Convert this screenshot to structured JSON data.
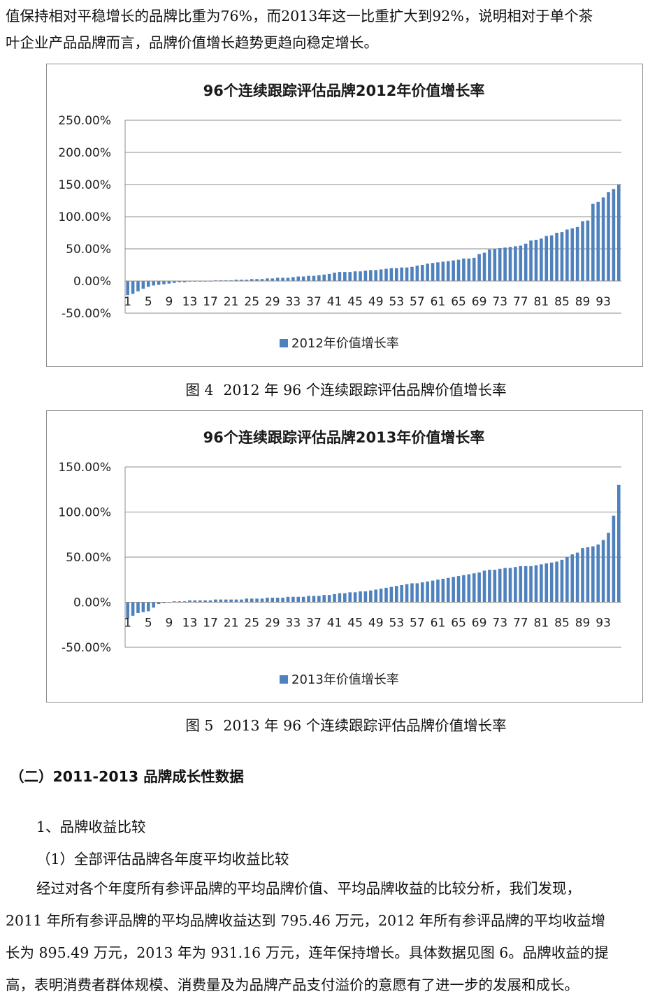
{
  "intro": {
    "line1": "值保持相对平稳增长的品牌比重为76%，而2013年这一比重扩大到92%，说明相对于单个茶",
    "line2": "叶企业产品品牌而言，品牌价值增长趋势更趋向稳定增长。"
  },
  "figure4": {
    "number": "图 4",
    "text": "2012 年 96 个连续跟踪评估品牌价值增长率"
  },
  "figure5": {
    "number": "图 5",
    "text": "2013 年 96 个连续跟踪评估品牌价值增长率"
  },
  "section": {
    "heading": "（二）2011-2013 品牌成长性数据",
    "sub1": "1、品牌收益比较",
    "sub2": "（1）全部评估品牌各年度平均收益比较",
    "body": [
      "经过对各个年度所有参评品牌的平均品牌价值、平均品牌收益的比较分析，我们发现，",
      "2011 年所有参评品牌的平均品牌收益达到 795.46 万元，2012 年所有参评品牌的平均收益增",
      "长为 895.49 万元，2013 年为 931.16 万元，连年保持增长。具体数据见图 6。品牌收益的提",
      "高，表明消费者群体规模、消费量及为品牌产品支付溢价的意愿有了进一步的发展和成长。"
    ]
  },
  "colors": {
    "bar": "#4f81bd",
    "grid": "#8c8c8c"
  },
  "chart_data": [
    {
      "type": "bar",
      "title": "96个连续跟踪评估品牌2012年价值增长率",
      "legend": "2012年价值增长率",
      "legend_position": "bottom",
      "ylim": [
        -50,
        250
      ],
      "yticks": [
        -50,
        0,
        50,
        100,
        150,
        200,
        250
      ],
      "ytick_labels": [
        "-50.00%",
        "0.00%",
        "50.00%",
        "100.00%",
        "150.00%",
        "200.00%",
        "250.00%"
      ],
      "xtick_labels": [
        "1",
        "5",
        "9",
        "13",
        "17",
        "21",
        "25",
        "29",
        "33",
        "37",
        "41",
        "45",
        "49",
        "53",
        "57",
        "61",
        "65",
        "69",
        "73",
        "77",
        "81",
        "85",
        "89",
        "93"
      ],
      "grid": true,
      "values": [
        -22,
        -20,
        -16,
        -12,
        -9,
        -7,
        -6,
        -5,
        -4,
        -3,
        -2,
        -2,
        -1,
        -1,
        -1,
        0,
        0,
        1,
        1,
        1,
        1,
        2,
        2,
        2,
        3,
        3,
        3,
        4,
        4,
        5,
        5,
        5,
        6,
        7,
        7,
        8,
        8,
        9,
        10,
        11,
        13,
        14,
        14,
        14,
        15,
        15,
        16,
        17,
        17,
        18,
        19,
        20,
        20,
        21,
        21,
        22,
        24,
        25,
        27,
        28,
        29,
        30,
        31,
        32,
        33,
        35,
        35,
        36,
        42,
        44,
        49,
        50,
        51,
        52,
        53,
        54,
        55,
        58,
        63,
        64,
        66,
        70,
        71,
        75,
        76,
        80,
        82,
        84,
        93,
        94,
        120,
        123,
        130,
        138,
        143,
        150
      ]
    },
    {
      "type": "bar",
      "title": "96个连续跟踪评估品牌2013年价值增长率",
      "legend": "2013年价值增长率",
      "legend_position": "bottom",
      "ylim": [
        -50,
        150
      ],
      "yticks": [
        -50,
        0,
        50,
        100,
        150
      ],
      "ytick_labels": [
        "-50.00%",
        "0.00%",
        "50.00%",
        "100.00%",
        "150.00%"
      ],
      "xtick_labels": [
        "1",
        "5",
        "9",
        "13",
        "17",
        "21",
        "25",
        "29",
        "33",
        "37",
        "41",
        "45",
        "49",
        "53",
        "57",
        "61",
        "65",
        "69",
        "73",
        "77",
        "81",
        "85",
        "89",
        "93"
      ],
      "grid": true,
      "values": [
        -18,
        -15,
        -12,
        -11,
        -10,
        -6,
        -2,
        -1,
        0,
        1,
        1,
        1,
        2,
        2,
        2,
        2,
        2,
        3,
        3,
        3,
        3,
        3,
        3,
        4,
        4,
        4,
        4,
        5,
        5,
        5,
        5,
        6,
        6,
        6,
        6,
        7,
        7,
        7,
        8,
        8,
        9,
        10,
        10,
        11,
        11,
        12,
        12,
        13,
        14,
        15,
        16,
        17,
        18,
        19,
        20,
        21,
        21,
        22,
        23,
        24,
        25,
        26,
        27,
        28,
        29,
        30,
        31,
        32,
        33,
        35,
        36,
        36,
        37,
        38,
        38,
        39,
        40,
        40,
        40,
        41,
        42,
        43,
        44,
        45,
        47,
        50,
        53,
        55,
        60,
        61,
        62,
        64,
        69,
        77,
        96,
        130
      ]
    }
  ]
}
